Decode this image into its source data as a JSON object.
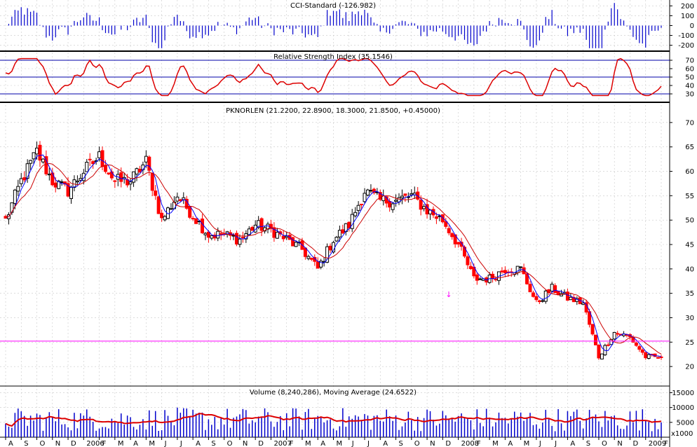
{
  "chart_data": {
    "type": "financial-chart",
    "panels": {
      "cci": {
        "title": "CCI-Standard (-126.982)",
        "y_ticks": [
          200,
          100,
          0,
          -100,
          -200
        ],
        "ylim": [
          -260,
          260
        ]
      },
      "rsi": {
        "title": "Relative Strength Index (35.1546)",
        "y_ticks": [
          70,
          60,
          50,
          40,
          30
        ],
        "levels": [
          70,
          50,
          30
        ],
        "ylim": [
          20,
          80
        ]
      },
      "price": {
        "title": "PKNORLEN (21.2200, 22.8900, 18.3000, 21.8500, +0.45000)",
        "y_ticks": [
          70,
          65,
          60,
          55,
          50,
          45,
          40,
          35,
          30,
          25,
          20
        ],
        "ylim": [
          16,
          74
        ],
        "horizontal_line": 25.2,
        "arrow_marker": "↓"
      },
      "volume": {
        "title": "Volume (8,240,286), Moving Average (24.6522)",
        "y_ticks": [
          "15000",
          "10000",
          "5000"
        ],
        "unit_label": "x1000",
        "ylim": [
          0,
          17000
        ]
      }
    },
    "x_axis_labels": [
      "A",
      "S",
      "O",
      "N",
      "D",
      "2006",
      "F",
      "M",
      "A",
      "M",
      "J",
      "J",
      "A",
      "S",
      "O",
      "N",
      "D",
      "2007",
      "F",
      "M",
      "A",
      "M",
      "J",
      "J",
      "A",
      "S",
      "O",
      "N",
      "D",
      "2008",
      "F",
      "M",
      "A",
      "M",
      "J",
      "J",
      "A",
      "S",
      "O",
      "N",
      "D",
      "2009",
      "F"
    ],
    "monthly_closes": [
      50,
      58,
      64,
      58,
      56,
      60,
      63,
      58,
      58,
      62,
      50,
      55,
      51,
      47,
      47,
      46,
      49,
      48,
      46,
      44,
      40,
      46,
      49,
      56,
      54,
      54,
      55,
      52,
      50,
      45,
      38,
      38,
      40,
      40,
      33,
      36,
      34,
      33,
      22,
      27,
      26,
      22,
      21.85
    ],
    "colors": {
      "up_candle": "#000000",
      "down_candle": "#ff0000",
      "ma_short": "#0000ff",
      "ma_long": "#cc0000",
      "cci_bars": "#0000cc",
      "rsi_line": "#dd0000",
      "volume_bars": "#0000cc",
      "volume_ma": "#dd0000",
      "horizontal_line": "#ff00ff",
      "grid": "#c8c8c8"
    }
  }
}
